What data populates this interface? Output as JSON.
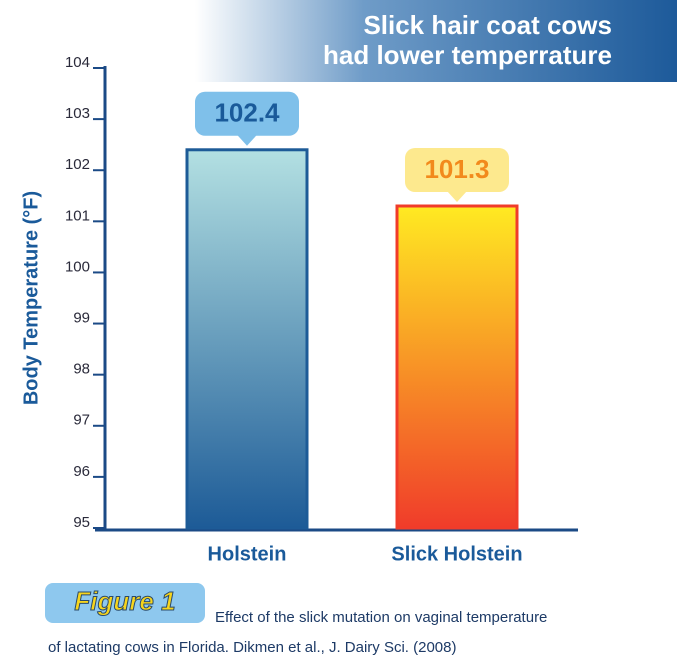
{
  "chart_data": {
    "type": "bar",
    "title": [
      "Slick hair coat cows",
      "had lower temperrature"
    ],
    "y_label": "Body Temperature (°F)",
    "categories": [
      "Holstein",
      "Slick Holstein"
    ],
    "values": [
      102.4,
      101.3
    ],
    "bar_gradients": [
      [
        "#b3e0e2",
        "#1d5b97"
      ],
      [
        "#ffea22",
        "#f03c2a"
      ]
    ],
    "label_colors": [
      [
        "#7fc0ea",
        "#1a5a9a"
      ],
      [
        "#fde98e",
        "#f28a1c"
      ]
    ],
    "ylim": [
      95,
      104
    ],
    "yticks": [
      95,
      96,
      97,
      98,
      99,
      100,
      101,
      102,
      103,
      104
    ],
    "grid": false
  },
  "figure_label": "Figure 1",
  "caption": [
    "Effect of the slick mutation on vaginal temperature",
    "of lactating cows in Florida. Dikmen et al., J. Dairy Sci. (2008)"
  ]
}
